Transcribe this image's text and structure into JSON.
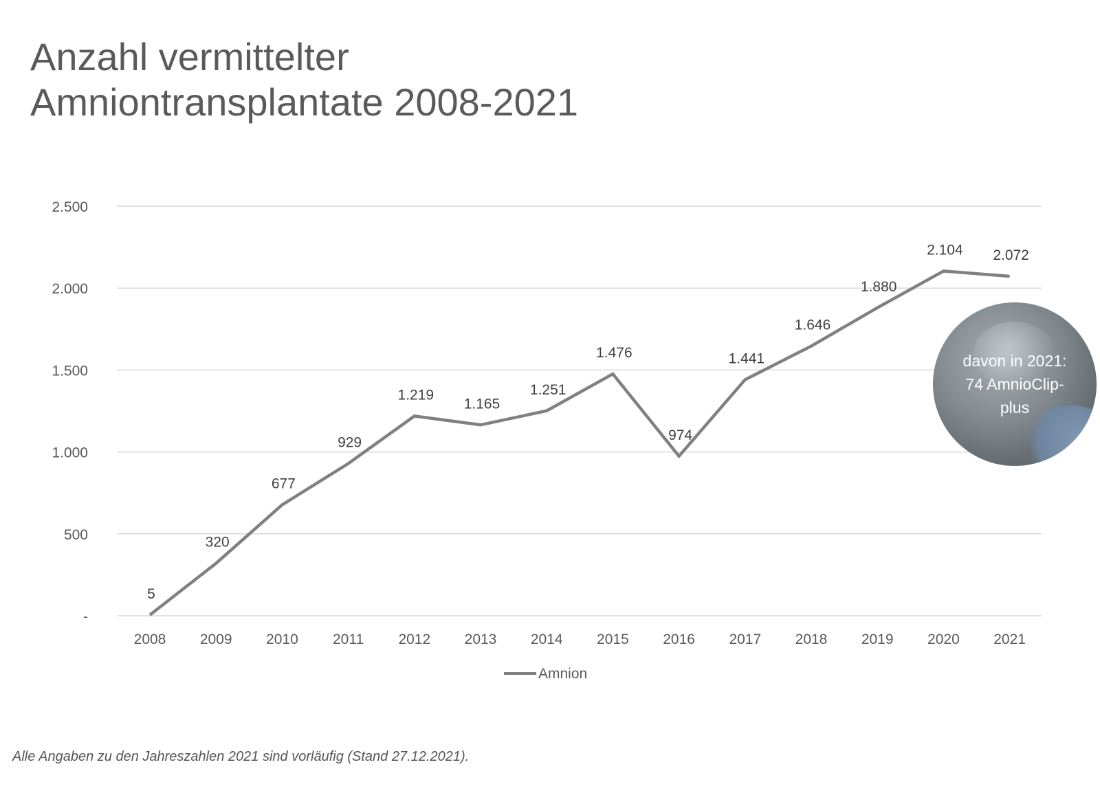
{
  "title_lines": [
    "Anzahl vermittelter",
    "Amniontransplantate 2008-2021"
  ],
  "footnote": "Alle Angaben zu den Jahreszahlen 2021 sind vorläufig (Stand 27.12.2021).",
  "badge": {
    "lines": [
      "davon in 2021:",
      "74 AmnioClip-",
      "plus"
    ]
  },
  "colors": {
    "line": "#808080",
    "grid": "#d9d9d9",
    "text": "#595959",
    "badge": "#7a8187"
  },
  "chart_data": {
    "type": "line",
    "title": "Anzahl vermittelter Amniontransplantate 2008-2021",
    "categories": [
      "2008",
      "2009",
      "2010",
      "2011",
      "2012",
      "2013",
      "2014",
      "2015",
      "2016",
      "2017",
      "2018",
      "2019",
      "2020",
      "2021"
    ],
    "series": [
      {
        "name": "Amnion",
        "values": [
          5,
          320,
          677,
          929,
          1219,
          1165,
          1251,
          1476,
          974,
          1441,
          1646,
          1880,
          2104,
          2072
        ],
        "labels": [
          "5",
          "320",
          "677",
          "929",
          "1.219",
          "1.165",
          "1.251",
          "1.476",
          "974",
          "1.441",
          "1.646",
          "1.880",
          "2.104",
          "2.072"
        ]
      }
    ],
    "ylim": [
      0,
      2500
    ],
    "yticks": [
      0,
      500,
      1000,
      1500,
      2000,
      2500
    ],
    "ytick_labels": [
      "-",
      "500",
      "1.000",
      "1.500",
      "2.000",
      "2.500"
    ],
    "grid": true,
    "legend": "bottom-center"
  }
}
